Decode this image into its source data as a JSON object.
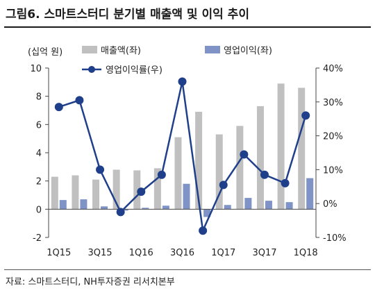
{
  "figure": {
    "title": "그림6. 스마트스터디 분기별 매출액 및 이익 추이",
    "source": "자료: 스마트스터디, NH투자증권 리서치본부"
  },
  "chart_data": {
    "type": "bar",
    "categories": [
      "1Q15",
      "2Q15",
      "3Q15",
      "4Q15",
      "1Q16",
      "2Q16",
      "3Q16",
      "4Q16",
      "1Q17",
      "2Q17",
      "3Q17",
      "4Q17",
      "1Q18"
    ],
    "x_tick_labels": [
      "1Q15",
      "3Q15",
      "1Q16",
      "3Q16",
      "1Q17",
      "3Q17",
      "1Q18"
    ],
    "unit_label": "(십억 원)",
    "series": [
      {
        "name": "매출액(좌)",
        "type": "bar",
        "axis": "left",
        "color": "#c0c0c0",
        "values": [
          2.3,
          2.4,
          2.1,
          2.8,
          2.75,
          2.9,
          5.1,
          6.9,
          5.3,
          5.9,
          7.3,
          8.9,
          8.6
        ]
      },
      {
        "name": "영업이익(좌)",
        "type": "bar",
        "axis": "left",
        "color": "#7f93c6",
        "values": [
          0.65,
          0.7,
          0.2,
          -0.1,
          0.1,
          0.25,
          1.8,
          -0.55,
          0.3,
          0.8,
          0.6,
          0.5,
          2.2
        ]
      },
      {
        "name": "영업이익률(우)",
        "type": "line",
        "axis": "right",
        "color": "#1f3f8a",
        "values": [
          28.5,
          30.5,
          10.0,
          -2.5,
          3.5,
          8.5,
          36.0,
          -8.0,
          5.5,
          14.5,
          8.5,
          6.0,
          26.0
        ]
      }
    ],
    "y_left": {
      "min": -2,
      "max": 10,
      "ticks": [
        "-2",
        "0",
        "2",
        "4",
        "6",
        "8",
        "10"
      ]
    },
    "y_right": {
      "min": -10,
      "max": 40,
      "ticks": [
        "-10%",
        "0%",
        "10%",
        "20%",
        "30%",
        "40%"
      ]
    },
    "grid": false,
    "legend": "top"
  }
}
